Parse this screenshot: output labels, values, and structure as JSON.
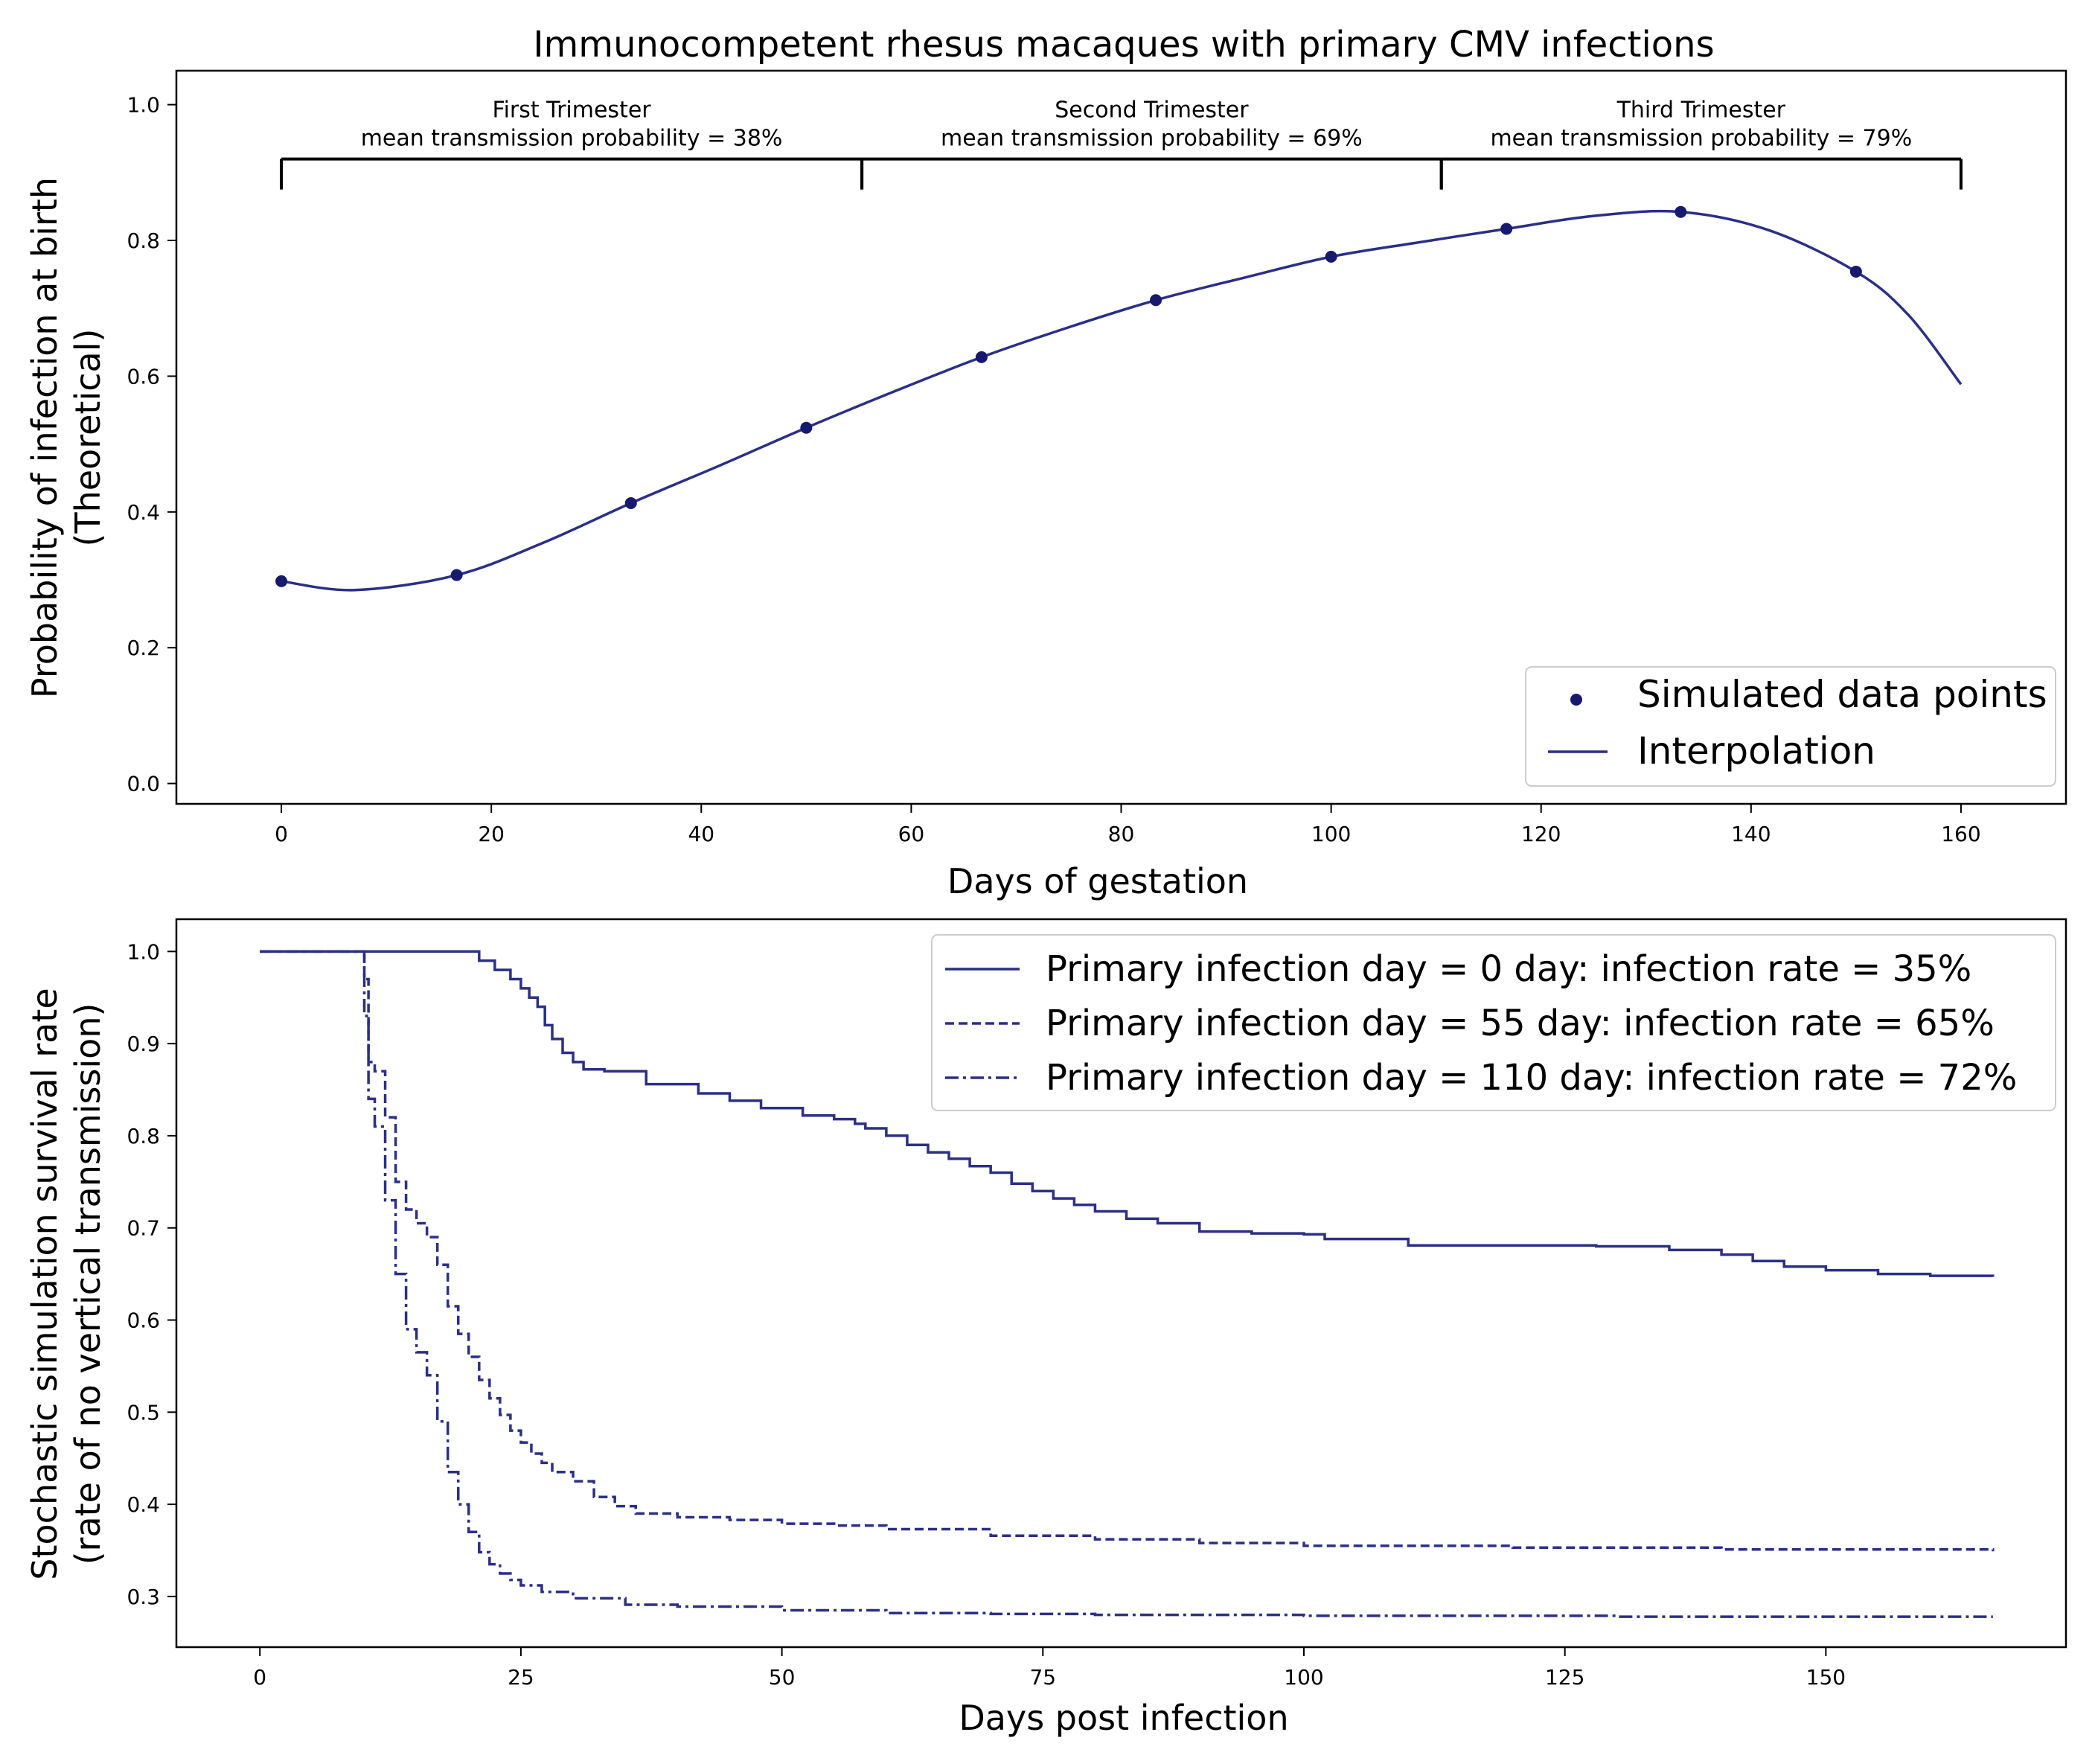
{
  "chart_data": [
    {
      "type": "line",
      "title": "Immunocompetent rhesus macaques with primary CMV infections",
      "xlabel": "Days of gestation",
      "ylabel": [
        "Probability of infection at birth",
        "(Theoretical)"
      ],
      "xlim": [
        -10,
        170
      ],
      "ylim": [
        -0.03,
        1.05
      ],
      "xticks": [
        0,
        20,
        40,
        60,
        80,
        100,
        120,
        140,
        160
      ],
      "xtick_labels": [
        "0",
        "20",
        "40",
        "60",
        "80",
        "100",
        "120",
        "140",
        "160"
      ],
      "yticks": [
        0.0,
        0.2,
        0.4,
        0.6,
        0.8,
        1.0
      ],
      "ytick_labels": [
        "0.0",
        "0.2",
        "0.4",
        "0.6",
        "0.8",
        "1.0"
      ],
      "grid": false,
      "series": [
        {
          "name": "Simulated data points",
          "kind": "scatter",
          "color": "#161a6e",
          "x": [
            0,
            16.7,
            33.3,
            50,
            66.7,
            83.3,
            100,
            116.7,
            133.3,
            150
          ],
          "y": [
            0.298,
            0.307,
            0.413,
            0.524,
            0.628,
            0.712,
            0.776,
            0.817,
            0.842,
            0.754
          ]
        },
        {
          "name": "Interpolation",
          "kind": "line",
          "color": "#2b2f85",
          "x": [
            0,
            7,
            16.7,
            25,
            33.3,
            41.7,
            50,
            58.3,
            66.7,
            75,
            83.3,
            91.7,
            100,
            108.3,
            116.7,
            125,
            133.3,
            141.7,
            150,
            155,
            160
          ],
          "y": [
            0.298,
            0.285,
            0.307,
            0.355,
            0.413,
            0.468,
            0.524,
            0.577,
            0.628,
            0.672,
            0.712,
            0.745,
            0.776,
            0.797,
            0.817,
            0.836,
            0.842,
            0.815,
            0.754,
            0.69,
            0.588
          ]
        }
      ],
      "trimester_brackets": [
        {
          "label": "First Trimester",
          "detail": "mean transmission probability =  38%",
          "x_start": 0,
          "x_end": 55.3
        },
        {
          "label": "Second Trimester",
          "detail": "mean transmission probability =  69%",
          "x_start": 55.3,
          "x_end": 110.5
        },
        {
          "label": "Third Trimester",
          "detail": "mean transmission probability =  79%",
          "x_start": 110.5,
          "x_end": 160
        }
      ],
      "bracket_y": 0.92,
      "bracket_tick_bottom": 0.875,
      "legend": {
        "placement": "lower-right",
        "entries": [
          "Simulated data points",
          "Interpolation"
        ]
      }
    },
    {
      "type": "line",
      "title": "",
      "xlabel": "Days post infection",
      "ylabel": [
        "Stochastic simulation survival rate",
        "(rate of no vertical transmission)"
      ],
      "xlim": [
        -8,
        173
      ],
      "ylim": [
        0.245,
        1.035
      ],
      "xticks": [
        0,
        25,
        50,
        75,
        100,
        125,
        150
      ],
      "xtick_labels": [
        "0",
        "25",
        "50",
        "75",
        "100",
        "125",
        "150"
      ],
      "yticks": [
        0.3,
        0.4,
        0.5,
        0.6,
        0.7,
        0.8,
        0.9,
        1.0
      ],
      "ytick_labels": [
        "0.3",
        "0.4",
        "0.5",
        "0.6",
        "0.7",
        "0.8",
        "0.9",
        "1.0"
      ],
      "grid": false,
      "series": [
        {
          "name": "Primary infection day = 0 day: infection rate = 35%",
          "style": "solid",
          "color": "#2b2f85",
          "x": [
            0,
            19.5,
            21,
            22.5,
            24,
            25,
            25.8,
            26.6,
            27.3,
            28,
            29,
            30,
            31,
            33,
            37,
            42,
            45,
            48,
            52,
            55,
            57,
            58,
            60,
            62,
            64,
            66,
            68,
            70,
            72,
            74,
            76,
            78,
            80,
            83,
            86,
            90,
            95,
            100,
            102,
            110,
            120,
            128,
            135,
            140,
            143,
            146,
            150,
            155,
            160,
            166
          ],
          "y": [
            1.0,
            1.0,
            0.99,
            0.98,
            0.97,
            0.96,
            0.95,
            0.94,
            0.92,
            0.905,
            0.89,
            0.88,
            0.872,
            0.87,
            0.856,
            0.846,
            0.838,
            0.83,
            0.822,
            0.818,
            0.813,
            0.808,
            0.8,
            0.79,
            0.782,
            0.775,
            0.767,
            0.76,
            0.748,
            0.74,
            0.732,
            0.725,
            0.718,
            0.71,
            0.705,
            0.696,
            0.694,
            0.693,
            0.688,
            0.681,
            0.681,
            0.68,
            0.676,
            0.671,
            0.664,
            0.658,
            0.654,
            0.65,
            0.648,
            0.647
          ]
        },
        {
          "name": "Primary infection day = 55 day: infection rate = 65%",
          "style": "dashed",
          "color": "#2b2f85",
          "x": [
            0,
            9.5,
            10,
            10.4,
            11,
            12,
            13,
            14,
            15,
            16,
            17,
            18,
            19,
            20,
            21,
            22,
            23,
            24,
            25,
            26,
            27,
            28,
            30,
            32,
            34,
            36,
            40,
            45,
            50,
            55,
            60,
            70,
            80,
            90,
            100,
            120,
            140,
            166
          ],
          "y": [
            1.0,
            1.0,
            0.97,
            0.88,
            0.87,
            0.82,
            0.75,
            0.72,
            0.705,
            0.69,
            0.66,
            0.615,
            0.585,
            0.56,
            0.535,
            0.515,
            0.497,
            0.48,
            0.467,
            0.455,
            0.445,
            0.435,
            0.425,
            0.408,
            0.398,
            0.39,
            0.386,
            0.383,
            0.379,
            0.377,
            0.373,
            0.366,
            0.362,
            0.358,
            0.355,
            0.353,
            0.351,
            0.349
          ]
        },
        {
          "name": "Primary infection day = 110 day: infection rate = 72%",
          "style": "dashdot",
          "color": "#2b2f85",
          "x": [
            0,
            9.5,
            10,
            10.4,
            11,
            12,
            13,
            14,
            15,
            16,
            17,
            18,
            19,
            20,
            21,
            22,
            23,
            24,
            25,
            27,
            30,
            35,
            40,
            50,
            60,
            70,
            80,
            100,
            130,
            166
          ],
          "y": [
            1.0,
            1.0,
            0.93,
            0.84,
            0.81,
            0.73,
            0.65,
            0.59,
            0.565,
            0.54,
            0.49,
            0.435,
            0.4,
            0.37,
            0.348,
            0.335,
            0.325,
            0.318,
            0.312,
            0.305,
            0.298,
            0.291,
            0.289,
            0.285,
            0.282,
            0.281,
            0.28,
            0.279,
            0.278,
            0.278
          ]
        }
      ],
      "legend": {
        "placement": "top-right",
        "entries": [
          "Primary infection day = 0 day: infection rate = 35%",
          "Primary infection day = 55 day: infection rate = 65%",
          "Primary infection day = 110 day: infection rate = 72%"
        ]
      }
    }
  ]
}
